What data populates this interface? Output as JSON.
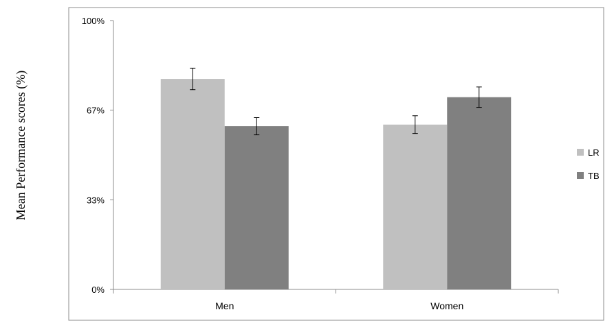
{
  "chart_data": {
    "type": "bar",
    "ylabel": "Mean Performance scores (%)",
    "xlabel": "",
    "categories": [
      "Men",
      "Women"
    ],
    "y_ticks": [
      {
        "value": 0,
        "label": "0%"
      },
      {
        "value": 33.33,
        "label": "33%"
      },
      {
        "value": 66.67,
        "label": "67%"
      },
      {
        "value": 100,
        "label": "100%"
      }
    ],
    "ylim": [
      0,
      100
    ],
    "legend_position": "right",
    "grid": false,
    "series": [
      {
        "name": "LR",
        "color": "#c0c0c0",
        "values": [
          78.3,
          61.3
        ],
        "errors": [
          4,
          3.3
        ]
      },
      {
        "name": "TB",
        "color": "#808080",
        "values": [
          60.7,
          71.5
        ],
        "errors": [
          3.2,
          3.8
        ]
      }
    ]
  }
}
